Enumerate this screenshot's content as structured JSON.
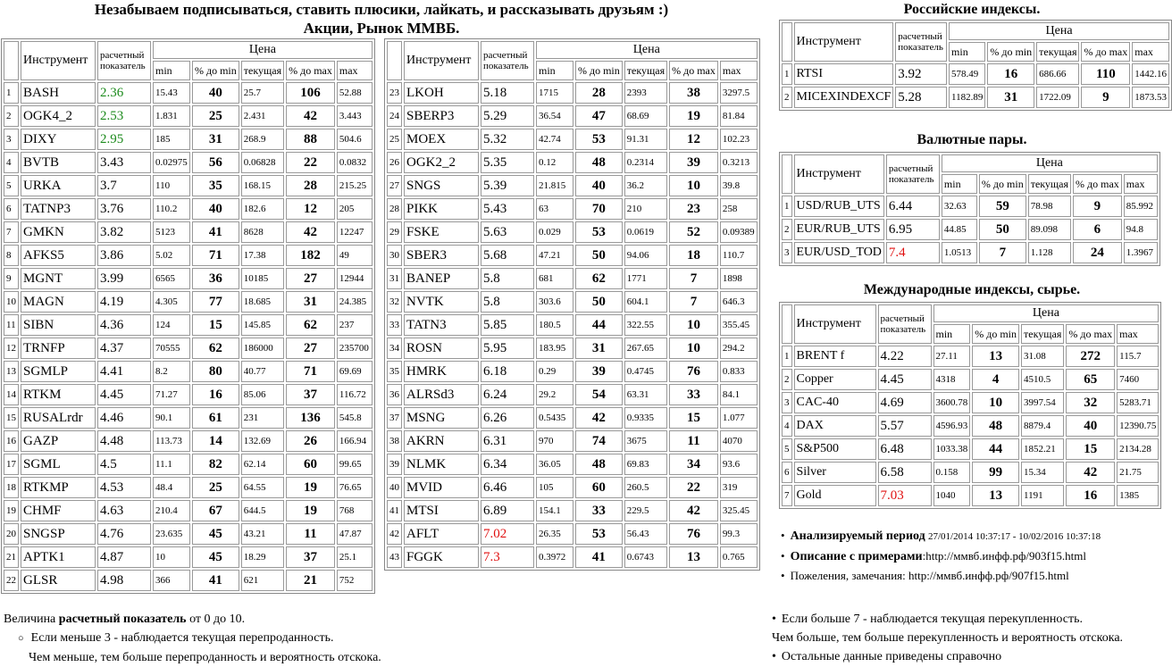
{
  "header": {
    "title": "Незабываем подписываться, ставить плюсики, лайкать, и рассказывать друзьям :)",
    "subtitle": "Акции, Рынок ММВБ."
  },
  "columns": {
    "instrument": "Инструмент",
    "indicator": "расчетный показатель",
    "price": "Цена",
    "min": "min",
    "pct_min": "% до min",
    "current": "текущая",
    "pct_max": "% до max",
    "max": "max"
  },
  "stocks_left": {
    "indicator_colors": {
      "0": "#1b8a1b",
      "1": "#1b8a1b",
      "2": "#1b8a1b"
    },
    "rows": [
      [
        "1",
        "BASH",
        "2.36",
        "15.43",
        "40",
        "25.7",
        "106",
        "52.88"
      ],
      [
        "2",
        "OGK4_2",
        "2.53",
        "1.831",
        "25",
        "2.431",
        "42",
        "3.443"
      ],
      [
        "3",
        "DIXY",
        "2.95",
        "185",
        "31",
        "268.9",
        "88",
        "504.6"
      ],
      [
        "4",
        "BVTB",
        "3.43",
        "0.02975",
        "56",
        "0.06828",
        "22",
        "0.0832"
      ],
      [
        "5",
        "URKA",
        "3.7",
        "110",
        "35",
        "168.15",
        "28",
        "215.25"
      ],
      [
        "6",
        "TATNP3",
        "3.76",
        "110.2",
        "40",
        "182.6",
        "12",
        "205"
      ],
      [
        "7",
        "GMKN",
        "3.82",
        "5123",
        "41",
        "8628",
        "42",
        "12247"
      ],
      [
        "8",
        "AFKS5",
        "3.86",
        "5.02",
        "71",
        "17.38",
        "182",
        "49"
      ],
      [
        "9",
        "MGNT",
        "3.99",
        "6565",
        "36",
        "10185",
        "27",
        "12944"
      ],
      [
        "10",
        "MAGN",
        "4.19",
        "4.305",
        "77",
        "18.685",
        "31",
        "24.385"
      ],
      [
        "11",
        "SIBN",
        "4.36",
        "124",
        "15",
        "145.85",
        "62",
        "237"
      ],
      [
        "12",
        "TRNFP",
        "4.37",
        "70555",
        "62",
        "186000",
        "27",
        "235700"
      ],
      [
        "13",
        "SGMLP",
        "4.41",
        "8.2",
        "80",
        "40.77",
        "71",
        "69.69"
      ],
      [
        "14",
        "RTKM",
        "4.45",
        "71.27",
        "16",
        "85.06",
        "37",
        "116.72"
      ],
      [
        "15",
        "RUSALrdr",
        "4.46",
        "90.1",
        "61",
        "231",
        "136",
        "545.8"
      ],
      [
        "16",
        "GAZP",
        "4.48",
        "113.73",
        "14",
        "132.69",
        "26",
        "166.94"
      ],
      [
        "17",
        "SGML",
        "4.5",
        "11.1",
        "82",
        "62.14",
        "60",
        "99.65"
      ],
      [
        "18",
        "RTKMP",
        "4.53",
        "48.4",
        "25",
        "64.55",
        "19",
        "76.65"
      ],
      [
        "19",
        "CHMF",
        "4.63",
        "210.4",
        "67",
        "644.5",
        "19",
        "768"
      ],
      [
        "20",
        "SNGSP",
        "4.76",
        "23.635",
        "45",
        "43.21",
        "11",
        "47.87"
      ],
      [
        "21",
        "APTK1",
        "4.87",
        "10",
        "45",
        "18.29",
        "37",
        "25.1"
      ],
      [
        "22",
        "GLSR",
        "4.98",
        "366",
        "41",
        "621",
        "21",
        "752"
      ]
    ]
  },
  "stocks_right": {
    "indicator_colors": {
      "19": "#e01010",
      "20": "#e01010"
    },
    "rows": [
      [
        "23",
        "LKOH",
        "5.18",
        "1715",
        "28",
        "2393",
        "38",
        "3297.5"
      ],
      [
        "24",
        "SBERP3",
        "5.29",
        "36.54",
        "47",
        "68.69",
        "19",
        "81.84"
      ],
      [
        "25",
        "MOEX",
        "5.32",
        "42.74",
        "53",
        "91.31",
        "12",
        "102.23"
      ],
      [
        "26",
        "OGK2_2",
        "5.35",
        "0.12",
        "48",
        "0.2314",
        "39",
        "0.3213"
      ],
      [
        "27",
        "SNGS",
        "5.39",
        "21.815",
        "40",
        "36.2",
        "10",
        "39.8"
      ],
      [
        "28",
        "PIKK",
        "5.43",
        "63",
        "70",
        "210",
        "23",
        "258"
      ],
      [
        "29",
        "FSKE",
        "5.63",
        "0.029",
        "53",
        "0.0619",
        "52",
        "0.09389"
      ],
      [
        "30",
        "SBER3",
        "5.68",
        "47.21",
        "50",
        "94.06",
        "18",
        "110.7"
      ],
      [
        "31",
        "BANEP",
        "5.8",
        "681",
        "62",
        "1771",
        "7",
        "1898"
      ],
      [
        "32",
        "NVTK",
        "5.8",
        "303.6",
        "50",
        "604.1",
        "7",
        "646.3"
      ],
      [
        "33",
        "TATN3",
        "5.85",
        "180.5",
        "44",
        "322.55",
        "10",
        "355.45"
      ],
      [
        "34",
        "ROSN",
        "5.95",
        "183.95",
        "31",
        "267.65",
        "10",
        "294.2"
      ],
      [
        "35",
        "HMRK",
        "6.18",
        "0.29",
        "39",
        "0.4745",
        "76",
        "0.833"
      ],
      [
        "36",
        "ALRSd3",
        "6.24",
        "29.2",
        "54",
        "63.31",
        "33",
        "84.1"
      ],
      [
        "37",
        "MSNG",
        "6.26",
        "0.5435",
        "42",
        "0.9335",
        "15",
        "1.077"
      ],
      [
        "38",
        "AKRN",
        "6.31",
        "970",
        "74",
        "3675",
        "11",
        "4070"
      ],
      [
        "39",
        "NLMK",
        "6.34",
        "36.05",
        "48",
        "69.83",
        "34",
        "93.6"
      ],
      [
        "40",
        "MVID",
        "6.46",
        "105",
        "60",
        "260.5",
        "22",
        "319"
      ],
      [
        "41",
        "MTSI",
        "6.89",
        "154.1",
        "33",
        "229.5",
        "42",
        "325.45"
      ],
      [
        "42",
        "AFLT",
        "7.02",
        "26.35",
        "53",
        "56.43",
        "76",
        "99.3"
      ],
      [
        "43",
        "FGGK",
        "7.3",
        "0.3972",
        "41",
        "0.6743",
        "13",
        "0.765"
      ]
    ]
  },
  "russian_indices": {
    "title": "Российские индексы.",
    "indicator_colors": {},
    "rows": [
      [
        "1",
        "RTSI",
        "3.92",
        "578.49",
        "16",
        "686.66",
        "110",
        "1442.16"
      ],
      [
        "2",
        "MICEXINDEXCF",
        "5.28",
        "1182.89",
        "31",
        "1722.09",
        "9",
        "1873.53"
      ]
    ]
  },
  "currency_pairs": {
    "title": "Валютные пары.",
    "indicator_colors": {
      "2": "#e01010"
    },
    "rows": [
      [
        "1",
        "USD/RUB_UTS",
        "6.44",
        "32.63",
        "59",
        "78.98",
        "9",
        "85.992"
      ],
      [
        "2",
        "EUR/RUB_UTS",
        "6.95",
        "44.85",
        "50",
        "89.098",
        "6",
        "94.8"
      ],
      [
        "3",
        "EUR/USD_TOD",
        "7.4",
        "1.0513",
        "7",
        "1.128",
        "24",
        "1.3967"
      ]
    ]
  },
  "international": {
    "title": "Международные индексы, сырье.",
    "indicator_colors": {
      "6": "#e01010"
    },
    "rows": [
      [
        "1",
        "BRENT f",
        "4.22",
        "27.11",
        "13",
        "31.08",
        "272",
        "115.7"
      ],
      [
        "2",
        "Copper",
        "4.45",
        "4318",
        "4",
        "4510.5",
        "65",
        "7460"
      ],
      [
        "3",
        "CAC-40",
        "4.69",
        "3600.78",
        "10",
        "3997.54",
        "32",
        "5283.71"
      ],
      [
        "4",
        "DAX",
        "5.57",
        "4596.93",
        "48",
        "8879.4",
        "40",
        "12390.75"
      ],
      [
        "5",
        "S&P500",
        "6.48",
        "1033.38",
        "44",
        "1852.21",
        "15",
        "2134.28"
      ],
      [
        "6",
        "Silver",
        "6.58",
        "0.158",
        "99",
        "15.34",
        "42",
        "21.75"
      ],
      [
        "7",
        "Gold",
        "7.03",
        "1040",
        "13",
        "1191",
        "16",
        "1385"
      ]
    ]
  },
  "info": {
    "period_label": "Анализируемый период",
    "period": "27/01/2014 10:37:17 - 10/02/2016 10:37:18",
    "description_label": "Описание с примерами",
    "description": ":http://ммвб.инфф.рф/903f15.html",
    "feedback": "Пожеления, замечания: http://ммвб.инфф.рф/907f15.html"
  },
  "notes_left": {
    "prefix": "Величина",
    "bold": "расчетный показатель",
    "suffix": "от 0 до 10.",
    "line1": "Если меньше 3 - наблюдается текущая перепроданность.",
    "line2": "Чем меньше, тем больше перепроданность и вероятность отскока."
  },
  "notes_right": {
    "line0": "Если больше 7 - наблюдается текущая перекупленность.",
    "line1": "Чем больше, тем больше перекупленность и вероятность отскока.",
    "line2": "Остальные данные приведены справочно"
  }
}
